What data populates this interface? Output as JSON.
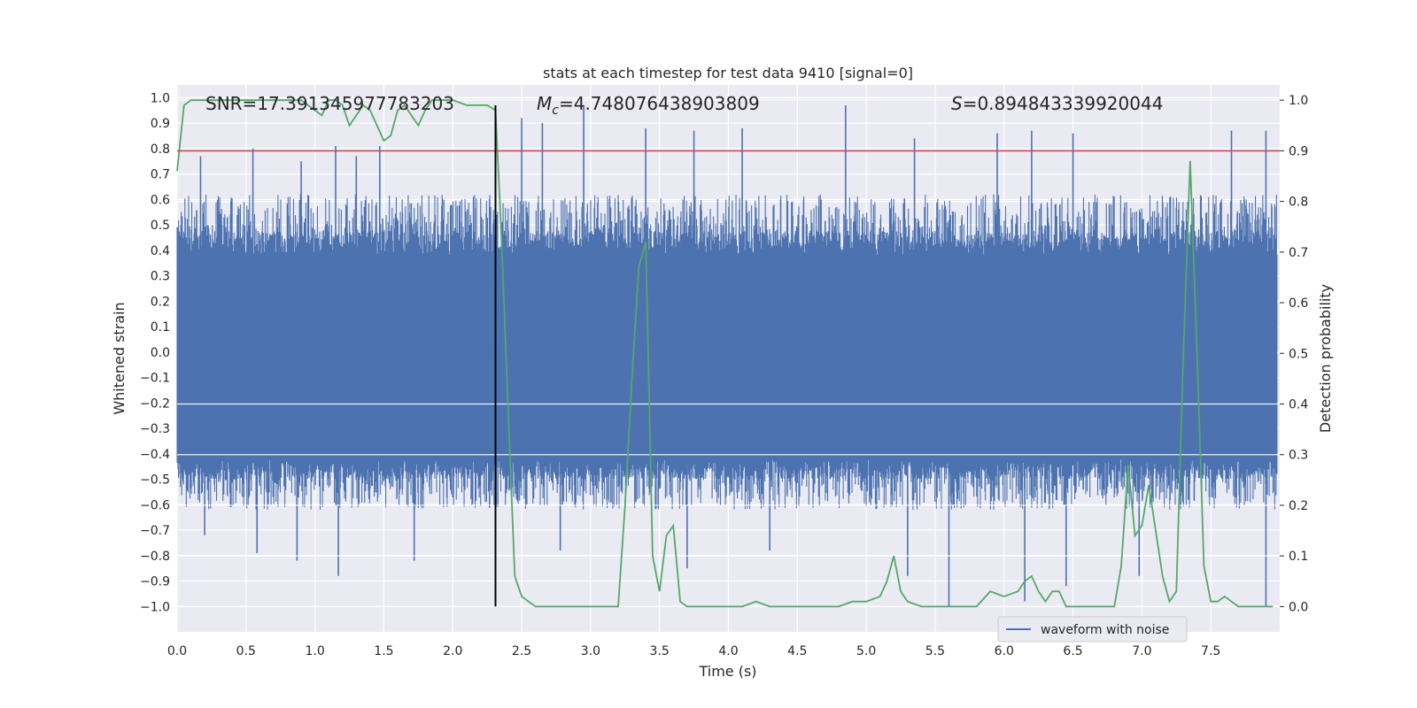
{
  "chart_data": {
    "type": "line",
    "title": "stats at each timestep for test data 9410 [signal=0]",
    "xlabel": "Time (s)",
    "ylabel": "Whitened strain",
    "y2label": "Detection probability",
    "xlim": [
      0.0,
      8.0
    ],
    "ylim": [
      -1.1,
      1.05
    ],
    "y2lim": [
      -0.05,
      1.03
    ],
    "x_ticks": [
      "0.0",
      "0.5",
      "1.0",
      "1.5",
      "2.0",
      "2.5",
      "3.0",
      "3.5",
      "4.0",
      "4.5",
      "5.0",
      "5.5",
      "6.0",
      "6.5",
      "7.0",
      "7.5"
    ],
    "y_ticks": [
      "1.0",
      "0.9",
      "0.8",
      "0.7",
      "0.6",
      "0.5",
      "0.4",
      "0.3",
      "0.2",
      "0.1",
      "0.0",
      "−0.1",
      "−0.2",
      "−0.3",
      "−0.4",
      "−0.5",
      "−0.6",
      "−0.7",
      "−0.8",
      "−0.9",
      "−1.0"
    ],
    "y2_ticks": [
      "1.0",
      "0.9",
      "0.8",
      "0.7",
      "0.6",
      "0.5",
      "0.4",
      "0.3",
      "0.2",
      "0.1",
      "0.0"
    ],
    "stats": {
      "snr_label": "SNR=17.391345977783203",
      "mc_symbol": "M",
      "mc_subscript": "c",
      "mc_value": "=4.748076438903809",
      "s_symbol": "S",
      "s_value": "=0.894843339920044"
    },
    "threshold_line": {
      "y2": 0.9,
      "color": "#c44e52"
    },
    "marker_line": {
      "x": 2.31,
      "y_from": -1.0,
      "y_to": 0.97,
      "color": "#000000"
    },
    "legend": {
      "label": "waveform with noise",
      "position": "lower-right"
    },
    "series": [
      {
        "name": "waveform with noise",
        "axis": "left",
        "color": "#4c72b0",
        "core_band": [
          -0.42,
          0.38
        ],
        "typical_envelope": [
          -0.62,
          0.62
        ],
        "spike_peaks": [
          {
            "x": 0.17,
            "y": 0.77
          },
          {
            "x": 0.55,
            "y": 0.8
          },
          {
            "x": 0.9,
            "y": 0.75
          },
          {
            "x": 1.15,
            "y": 0.81
          },
          {
            "x": 1.3,
            "y": 0.77
          },
          {
            "x": 1.47,
            "y": 0.81
          },
          {
            "x": 2.5,
            "y": 0.92
          },
          {
            "x": 2.65,
            "y": 0.9
          },
          {
            "x": 2.95,
            "y": 0.97
          },
          {
            "x": 3.4,
            "y": 0.88
          },
          {
            "x": 3.75,
            "y": 0.87
          },
          {
            "x": 4.1,
            "y": 0.88
          },
          {
            "x": 4.85,
            "y": 0.97
          },
          {
            "x": 5.35,
            "y": 0.84
          },
          {
            "x": 5.95,
            "y": 0.86
          },
          {
            "x": 6.2,
            "y": 0.87
          },
          {
            "x": 6.5,
            "y": 0.86
          },
          {
            "x": 7.65,
            "y": 0.87
          },
          {
            "x": 7.9,
            "y": 0.87
          },
          {
            "x": 0.2,
            "y": -0.72
          },
          {
            "x": 0.58,
            "y": -0.79
          },
          {
            "x": 0.87,
            "y": -0.82
          },
          {
            "x": 1.17,
            "y": -0.88
          },
          {
            "x": 1.72,
            "y": -0.82
          },
          {
            "x": 2.78,
            "y": -0.78
          },
          {
            "x": 3.7,
            "y": -0.85
          },
          {
            "x": 4.3,
            "y": -0.78
          },
          {
            "x": 5.3,
            "y": -0.88
          },
          {
            "x": 5.6,
            "y": -1.0
          },
          {
            "x": 6.15,
            "y": -0.98
          },
          {
            "x": 6.45,
            "y": -0.92
          },
          {
            "x": 6.98,
            "y": -0.88
          },
          {
            "x": 7.9,
            "y": -1.0
          }
        ]
      },
      {
        "name": "detection probability",
        "axis": "right",
        "color": "#55a868",
        "x": [
          0.0,
          0.05,
          0.1,
          0.2,
          0.3,
          0.4,
          0.5,
          0.6,
          0.7,
          0.8,
          0.9,
          0.95,
          1.0,
          1.05,
          1.1,
          1.15,
          1.2,
          1.25,
          1.3,
          1.35,
          1.4,
          1.45,
          1.5,
          1.55,
          1.6,
          1.65,
          1.7,
          1.75,
          1.8,
          1.85,
          1.9,
          2.0,
          2.1,
          2.2,
          2.25,
          2.31,
          2.35,
          2.4,
          2.45,
          2.5,
          2.55,
          2.6,
          2.7,
          2.8,
          3.0,
          3.2,
          3.25,
          3.3,
          3.35,
          3.4,
          3.45,
          3.5,
          3.55,
          3.6,
          3.65,
          3.7,
          3.8,
          4.0,
          4.1,
          4.2,
          4.3,
          4.5,
          4.7,
          4.8,
          4.9,
          5.0,
          5.1,
          5.15,
          5.2,
          5.25,
          5.3,
          5.4,
          5.5,
          5.6,
          5.7,
          5.8,
          5.9,
          6.0,
          6.1,
          6.15,
          6.2,
          6.25,
          6.3,
          6.35,
          6.4,
          6.45,
          6.5,
          6.6,
          6.8,
          6.85,
          6.9,
          6.95,
          7.0,
          7.05,
          7.1,
          7.15,
          7.2,
          7.25,
          7.3,
          7.35,
          7.4,
          7.45,
          7.5,
          7.55,
          7.6,
          7.65,
          7.7,
          7.8,
          7.95
        ],
        "y": [
          0.86,
          0.99,
          1.0,
          1.0,
          1.0,
          1.0,
          1.0,
          1.0,
          1.0,
          1.0,
          1.0,
          0.99,
          0.98,
          0.97,
          1.0,
          1.0,
          0.99,
          0.95,
          0.97,
          0.99,
          0.98,
          0.95,
          0.92,
          0.93,
          0.98,
          0.99,
          0.97,
          0.95,
          0.98,
          1.0,
          1.0,
          1.0,
          0.99,
          0.99,
          0.99,
          0.98,
          0.75,
          0.4,
          0.06,
          0.02,
          0.01,
          0.0,
          0.0,
          0.0,
          0.0,
          0.0,
          0.2,
          0.45,
          0.67,
          0.72,
          0.1,
          0.03,
          0.14,
          0.16,
          0.01,
          0.0,
          0.0,
          0.0,
          0.0,
          0.01,
          0.0,
          0.0,
          0.0,
          0.0,
          0.01,
          0.01,
          0.02,
          0.05,
          0.1,
          0.03,
          0.01,
          0.0,
          0.0,
          0.0,
          0.0,
          0.0,
          0.03,
          0.02,
          0.03,
          0.05,
          0.06,
          0.03,
          0.01,
          0.03,
          0.03,
          0.0,
          0.0,
          0.0,
          0.0,
          0.08,
          0.28,
          0.14,
          0.16,
          0.24,
          0.15,
          0.06,
          0.01,
          0.03,
          0.49,
          0.88,
          0.5,
          0.08,
          0.01,
          0.01,
          0.02,
          0.01,
          0.0,
          0.0,
          0.0
        ]
      }
    ]
  }
}
